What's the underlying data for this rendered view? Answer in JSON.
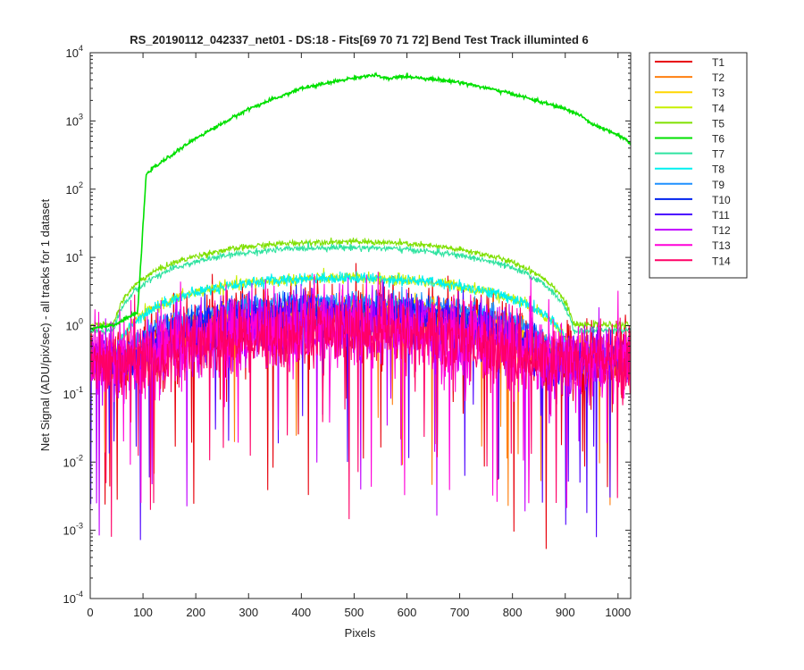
{
  "chart_data": {
    "type": "line",
    "title": "RS_20190112_042337_net01 - DS:18 - Fits[69  70  71  72]   Bend Test       Track illuminted 6",
    "xlabel": "Pixels",
    "ylabel": "Net Signal (ADU/pix/sec) - all tracks for 1 dataset",
    "xlim": [
      0,
      1024
    ],
    "ylim": [
      0.0001,
      10000
    ],
    "yscale": "log",
    "grid": false,
    "legend_position": "outside-right",
    "x_ticks": [
      0,
      100,
      200,
      300,
      400,
      500,
      600,
      700,
      800,
      900,
      1000
    ],
    "y_ticks": [
      {
        "base": "10",
        "exp": "-4",
        "value": 0.0001
      },
      {
        "base": "10",
        "exp": "-3",
        "value": 0.001
      },
      {
        "base": "10",
        "exp": "-2",
        "value": 0.01
      },
      {
        "base": "10",
        "exp": "-1",
        "value": 0.1
      },
      {
        "base": "10",
        "exp": "0",
        "value": 1
      },
      {
        "base": "10",
        "exp": "1",
        "value": 10
      },
      {
        "base": "10",
        "exp": "2",
        "value": 100
      },
      {
        "base": "10",
        "exp": "3",
        "value": 1000
      },
      {
        "base": "10",
        "exp": "4",
        "value": 10000
      }
    ],
    "series": [
      {
        "name": "T1",
        "color": "#e8000b",
        "peak": 1.2,
        "noise": 1.0
      },
      {
        "name": "T2",
        "color": "#ff7f0e",
        "peak": 1.3,
        "noise": 0.55
      },
      {
        "name": "T3",
        "color": "#ffd600",
        "peak": 1.8,
        "noise": 0.35
      },
      {
        "name": "T4",
        "color": "#c8f000",
        "peak": 5.0,
        "noise": 0.15
      },
      {
        "name": "T5",
        "color": "#7fe000",
        "peak": 17,
        "noise": 0.08
      },
      {
        "name": "T6",
        "color": "#00e000",
        "peak": 4500,
        "noise": 0.03
      },
      {
        "name": "T7",
        "color": "#2fe3a0",
        "peak": 14,
        "noise": 0.08
      },
      {
        "name": "T8",
        "color": "#00f0f0",
        "peak": 5.0,
        "noise": 0.15
      },
      {
        "name": "T9",
        "color": "#1e90ff",
        "peak": 2.3,
        "noise": 0.3
      },
      {
        "name": "T10",
        "color": "#0022ee",
        "peak": 1.6,
        "noise": 0.45
      },
      {
        "name": "T11",
        "color": "#4b00ff",
        "peak": 1.3,
        "noise": 0.6
      },
      {
        "name": "T12",
        "color": "#c000ff",
        "peak": 1.0,
        "noise": 0.9
      },
      {
        "name": "T13",
        "color": "#ff00d8",
        "peak": 0.9,
        "noise": 1.1
      },
      {
        "name": "T14",
        "color": "#ff0066",
        "peak": 0.8,
        "noise": 0.95
      }
    ]
  }
}
